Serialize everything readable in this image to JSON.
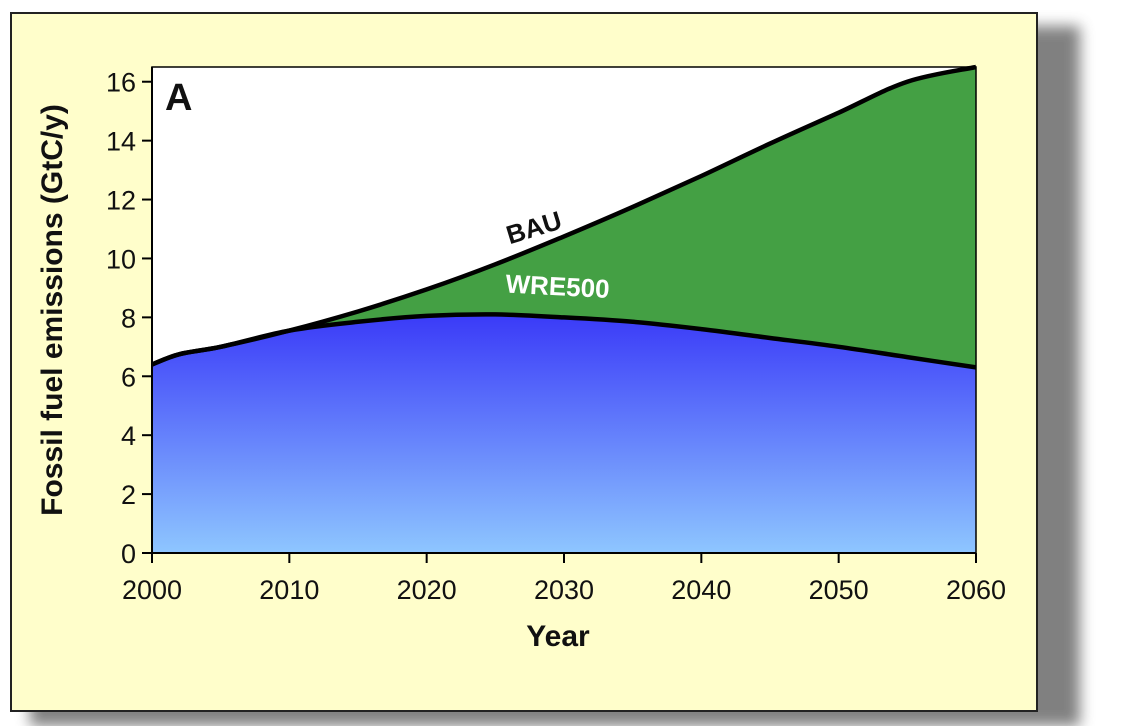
{
  "chart_data": {
    "type": "area",
    "panel_label": "A",
    "xlabel": "Year",
    "ylabel": "Fossil fuel emissions (GtC/y)",
    "xlim": [
      2000,
      2060
    ],
    "ylim": [
      0,
      16.5
    ],
    "x_ticks": [
      2000,
      2010,
      2020,
      2030,
      2040,
      2050,
      2060
    ],
    "y_ticks": [
      0,
      2,
      4,
      6,
      8,
      10,
      12,
      14,
      16
    ],
    "x": [
      2000,
      2002,
      2005,
      2010,
      2015,
      2020,
      2025,
      2030,
      2035,
      2040,
      2045,
      2050,
      2055,
      2060
    ],
    "series": [
      {
        "name": "BAU",
        "values": [
          6.4,
          6.75,
          7.0,
          7.55,
          8.2,
          8.95,
          9.8,
          10.75,
          11.75,
          12.8,
          13.9,
          14.95,
          16.0,
          16.5
        ],
        "color": "#44a044"
      },
      {
        "name": "WRE500",
        "values": [
          6.4,
          6.75,
          7.0,
          7.55,
          7.85,
          8.05,
          8.1,
          8.0,
          7.85,
          7.6,
          7.3,
          7.0,
          6.65,
          6.3
        ],
        "color": "#4646ff"
      }
    ],
    "colors": {
      "bau_fill": "#44a044",
      "wre_fill_top": "#3a3af8",
      "wre_fill_bottom": "#8ec6ff",
      "bau_label": "#111111",
      "wre_label": "#ffffff",
      "panel_background": "#fffecb"
    },
    "grid": false
  }
}
